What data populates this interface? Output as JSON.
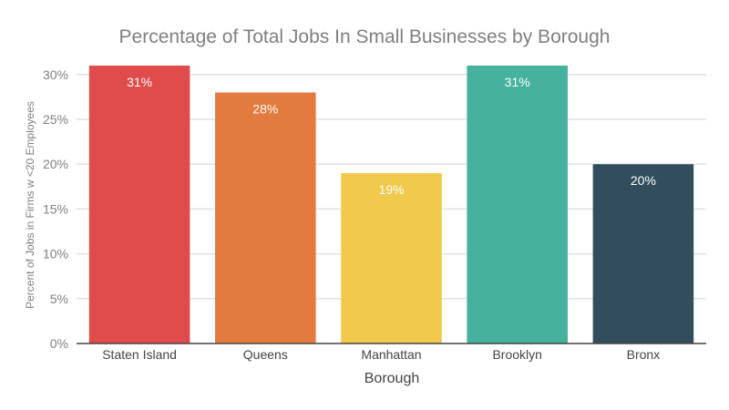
{
  "chart_data": {
    "type": "bar",
    "title": "Percentage of Total Jobs In Small Businesses by Borough",
    "xlabel": "Borough",
    "ylabel": "Percent of Jobs in Firms w <20 Employees",
    "categories": [
      "Staten Island",
      "Queens",
      "Manhattan",
      "Brooklyn",
      "Bronx"
    ],
    "values": [
      31,
      28,
      19,
      31,
      20
    ],
    "data_labels": [
      "31%",
      "28%",
      "19%",
      "31%",
      "20%"
    ],
    "colors": [
      "#e04b4b",
      "#e37b3f",
      "#f0c94d",
      "#46b29d",
      "#324d5c"
    ],
    "yticks": [
      0,
      5,
      10,
      15,
      20,
      25,
      30
    ],
    "ytick_labels": [
      "0%",
      "5%",
      "10%",
      "15%",
      "20%",
      "25%",
      "30%"
    ],
    "ylim": [
      0,
      31
    ],
    "grid": true,
    "legend": "none"
  }
}
